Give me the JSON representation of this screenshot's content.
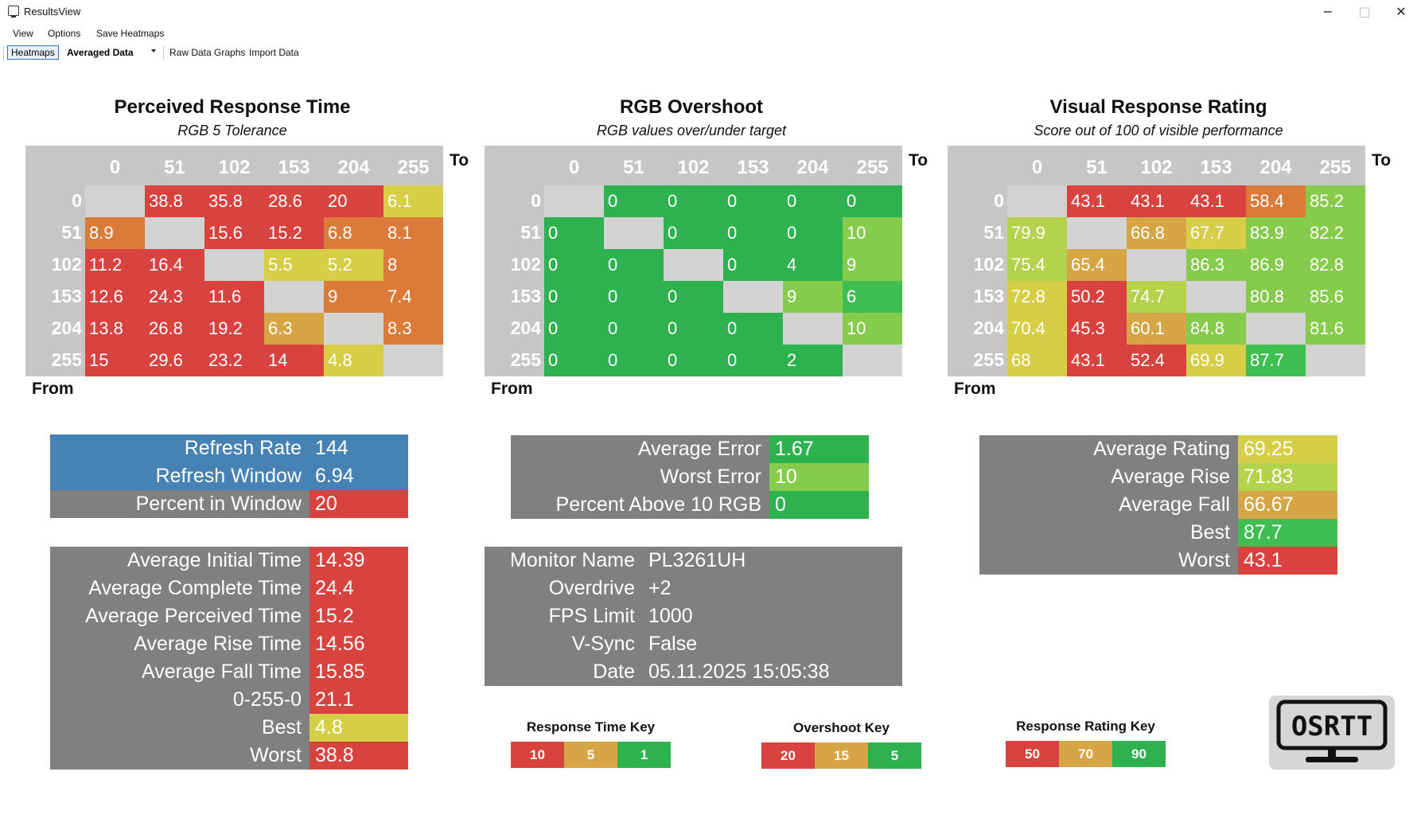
{
  "window": {
    "title": "ResultsView",
    "minimize_glyph": "−",
    "maximize_glyph": "□",
    "close_glyph": "✕"
  },
  "menu": [
    "View",
    "Options",
    "Save Heatmaps"
  ],
  "toolbar": {
    "heatmaps": "Heatmaps",
    "dropdown_value": "Averaged Data",
    "raw_data_graphs": "Raw Data Graphs",
    "import_data": "Import Data"
  },
  "colors": {
    "red": "#d9433f",
    "orange": "#db7b3a",
    "amber": "#d6a545",
    "yellow": "#d7ce47",
    "lime": "#b5d24c",
    "lightgreen": "#86cb4b",
    "green": "#3fbe52",
    "green2": "#2eb14f",
    "blank": "#d3d3d3",
    "header": "#c6c6c6",
    "gray": "#808080",
    "blue": "#4682b4"
  },
  "axis": {
    "to": "To",
    "from": "From",
    "levels": [
      "0",
      "51",
      "102",
      "153",
      "204",
      "255"
    ]
  },
  "heatmaps": [
    {
      "title": "Perceived Response Time",
      "subtitle": "RGB 5 Tolerance",
      "values": [
        [
          "",
          "38.8",
          "35.8",
          "28.6",
          "20",
          "6.1"
        ],
        [
          "8.9",
          "",
          "15.6",
          "15.2",
          "6.8",
          "8.1"
        ],
        [
          "11.2",
          "16.4",
          "",
          "5.5",
          "5.2",
          "8"
        ],
        [
          "12.6",
          "24.3",
          "11.6",
          "",
          "9",
          "7.4"
        ],
        [
          "13.8",
          "26.8",
          "19.2",
          "6.3",
          "",
          "8.3"
        ],
        [
          "15",
          "29.6",
          "23.2",
          "14",
          "4.8",
          ""
        ]
      ],
      "colors": [
        [
          "blank",
          "red",
          "red",
          "red",
          "red",
          "yellow"
        ],
        [
          "orange",
          "blank",
          "red",
          "red",
          "orange",
          "orange"
        ],
        [
          "red",
          "red",
          "blank",
          "yellow",
          "yellow",
          "orange"
        ],
        [
          "red",
          "red",
          "red",
          "blank",
          "orange",
          "orange"
        ],
        [
          "red",
          "red",
          "red",
          "amber",
          "blank",
          "orange"
        ],
        [
          "red",
          "red",
          "red",
          "red",
          "yellow",
          "blank"
        ]
      ]
    },
    {
      "title": "RGB Overshoot",
      "subtitle": "RGB values over/under target",
      "values": [
        [
          "",
          "0",
          "0",
          "0",
          "0",
          "0"
        ],
        [
          "0",
          "",
          "0",
          "0",
          "0",
          "10"
        ],
        [
          "0",
          "0",
          "",
          "0",
          "4",
          "9"
        ],
        [
          "0",
          "0",
          "0",
          "",
          "9",
          "6"
        ],
        [
          "0",
          "0",
          "0",
          "0",
          "",
          "10"
        ],
        [
          "0",
          "0",
          "0",
          "0",
          "2",
          ""
        ]
      ],
      "colors": [
        [
          "blank",
          "green2",
          "green2",
          "green2",
          "green2",
          "green2"
        ],
        [
          "green2",
          "blank",
          "green2",
          "green2",
          "green2",
          "lightgreen"
        ],
        [
          "green2",
          "green2",
          "blank",
          "green2",
          "green2",
          "lightgreen"
        ],
        [
          "green2",
          "green2",
          "green2",
          "blank",
          "lightgreen",
          "green"
        ],
        [
          "green2",
          "green2",
          "green2",
          "green2",
          "blank",
          "lightgreen"
        ],
        [
          "green2",
          "green2",
          "green2",
          "green2",
          "green2",
          "blank"
        ]
      ]
    },
    {
      "title": "Visual Response Rating",
      "subtitle": "Score out of 100 of visible performance",
      "values": [
        [
          "",
          "43.1",
          "43.1",
          "43.1",
          "58.4",
          "85.2"
        ],
        [
          "79.9",
          "",
          "66.8",
          "67.7",
          "83.9",
          "82.2"
        ],
        [
          "75.4",
          "65.4",
          "",
          "86.3",
          "86.9",
          "82.8"
        ],
        [
          "72.8",
          "50.2",
          "74.7",
          "",
          "80.8",
          "85.6"
        ],
        [
          "70.4",
          "45.3",
          "60.1",
          "84.8",
          "",
          "81.6"
        ],
        [
          "68",
          "43.1",
          "52.4",
          "69.9",
          "87.7",
          ""
        ]
      ],
      "colors": [
        [
          "blank",
          "red",
          "red",
          "red",
          "orange",
          "lightgreen"
        ],
        [
          "lime",
          "blank",
          "amber",
          "yellow",
          "lightgreen",
          "lightgreen"
        ],
        [
          "lime",
          "amber",
          "blank",
          "lightgreen",
          "lightgreen",
          "lightgreen"
        ],
        [
          "yellow",
          "red",
          "lime",
          "blank",
          "lightgreen",
          "lightgreen"
        ],
        [
          "yellow",
          "red",
          "amber",
          "lightgreen",
          "blank",
          "lightgreen"
        ],
        [
          "yellow",
          "red",
          "red",
          "yellow",
          "green",
          "blank"
        ]
      ]
    }
  ],
  "refresh_box": [
    {
      "label": "Refresh Rate",
      "value": "144",
      "label_color": "blue",
      "value_color": "blue"
    },
    {
      "label": "Refresh Window",
      "value": "6.94",
      "label_color": "blue",
      "value_color": "blue"
    },
    {
      "label": "Percent in Window",
      "value": "20",
      "label_color": "gray",
      "value_color": "red"
    }
  ],
  "response_stats": [
    {
      "label": "Average Initial Time",
      "value": "14.39",
      "value_color": "red"
    },
    {
      "label": "Average Complete Time",
      "value": "24.4",
      "value_color": "red"
    },
    {
      "label": "Average Perceived Time",
      "value": "15.2",
      "value_color": "red"
    },
    {
      "label": "Average Rise Time",
      "value": "14.56",
      "value_color": "red"
    },
    {
      "label": "Average Fall Time",
      "value": "15.85",
      "value_color": "red"
    },
    {
      "label": "0-255-0",
      "value": "21.1",
      "value_color": "red"
    },
    {
      "label": "Best",
      "value": "4.8",
      "value_color": "yellow"
    },
    {
      "label": "Worst",
      "value": "38.8",
      "value_color": "red"
    }
  ],
  "overshoot_stats": [
    {
      "label": "Average Error",
      "value": "1.67",
      "value_color": "green2"
    },
    {
      "label": "Worst Error",
      "value": "10",
      "value_color": "lightgreen"
    },
    {
      "label": "Percent Above 10 RGB",
      "value": "0",
      "value_color": "green2"
    }
  ],
  "monitor_info": [
    {
      "label": "Monitor Name",
      "value": "PL3261UH"
    },
    {
      "label": "Overdrive",
      "value": "+2"
    },
    {
      "label": "FPS Limit",
      "value": "1000"
    },
    {
      "label": "V-Sync",
      "value": "False"
    },
    {
      "label": "Date",
      "value": "05.11.2025 15:05:38"
    }
  ],
  "rating_stats": [
    {
      "label": "Average Rating",
      "value": "69.25",
      "value_color": "yellow"
    },
    {
      "label": "Average Rise",
      "value": "71.83",
      "value_color": "lime"
    },
    {
      "label": "Average Fall",
      "value": "66.67",
      "value_color": "amber"
    },
    {
      "label": "Best",
      "value": "87.7",
      "value_color": "green"
    },
    {
      "label": "Worst",
      "value": "43.1",
      "value_color": "red"
    }
  ],
  "keys": [
    {
      "title": "Response Time Key",
      "values": [
        "10",
        "5",
        "1"
      ],
      "colors": [
        "red",
        "amber",
        "green2"
      ]
    },
    {
      "title": "Overshoot Key",
      "values": [
        "20",
        "15",
        "5"
      ],
      "colors": [
        "red",
        "amber",
        "green2"
      ]
    },
    {
      "title": "Response Rating Key",
      "values": [
        "50",
        "70",
        "90"
      ],
      "colors": [
        "red",
        "amber",
        "green2"
      ]
    }
  ],
  "logo": {
    "text": "OSRTT"
  }
}
